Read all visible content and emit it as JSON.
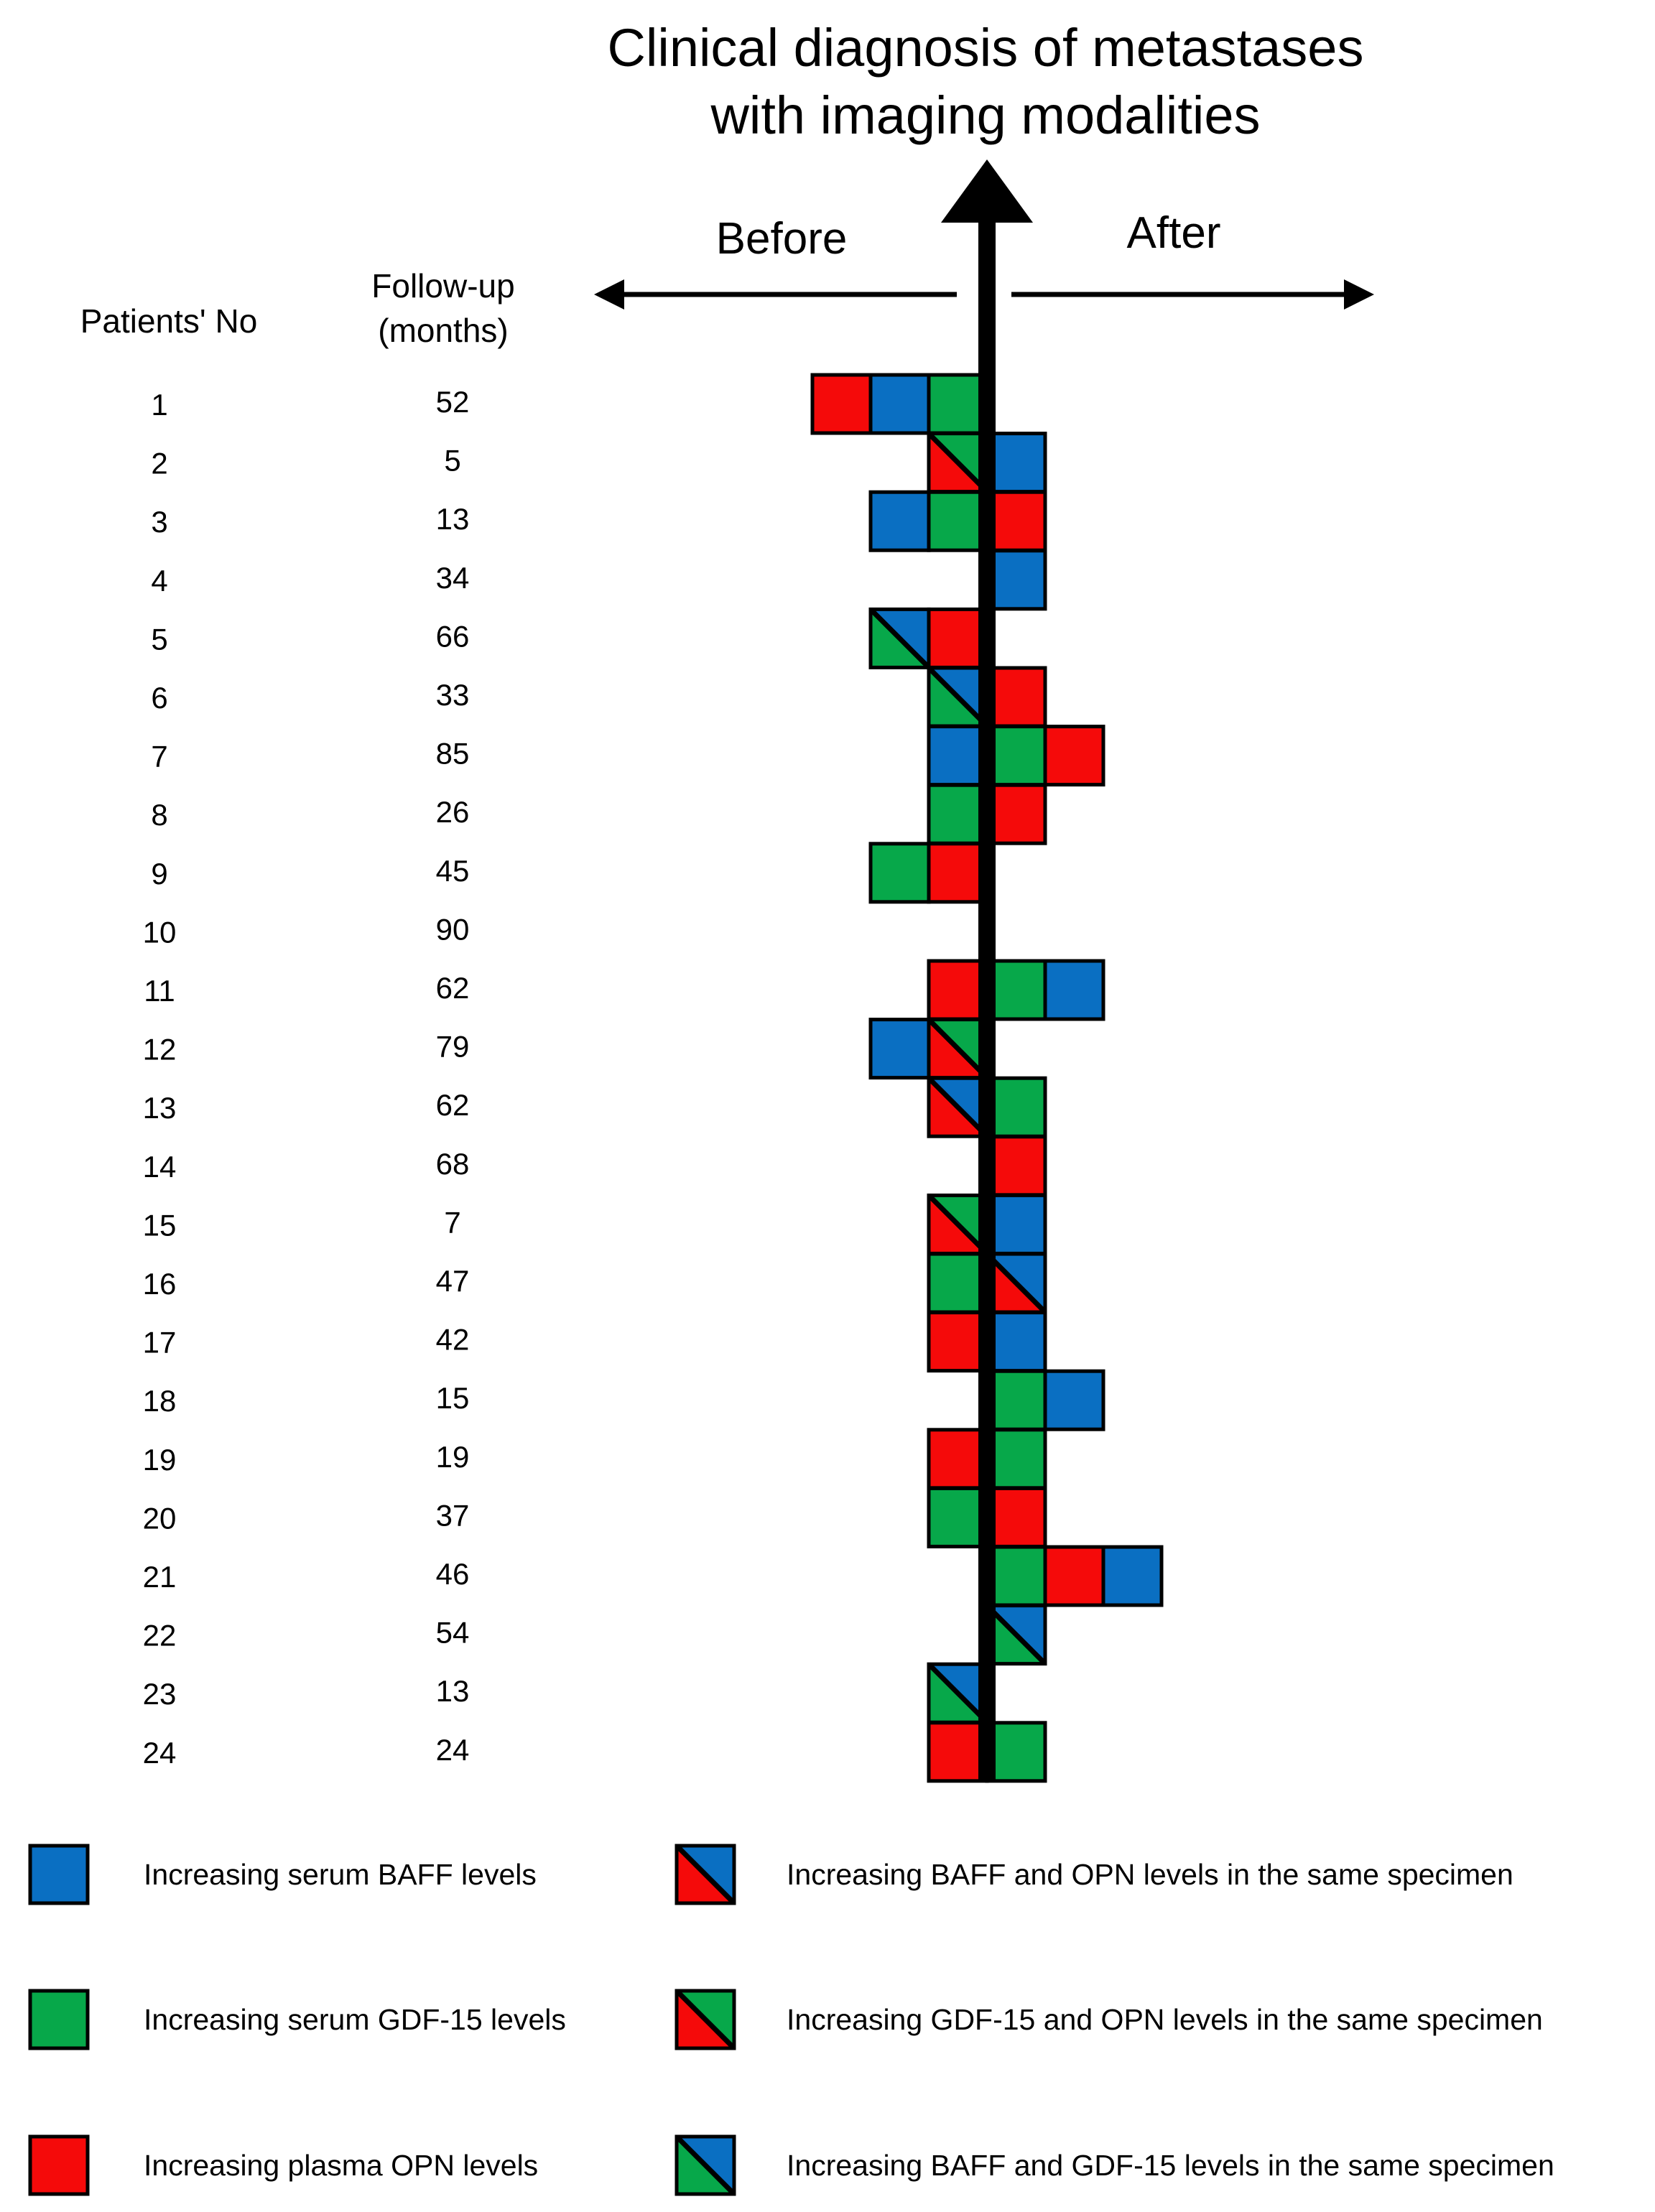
{
  "title_lines": [
    "Clinical diagnosis of metastases",
    "with imaging modalities"
  ],
  "direction_labels": {
    "before": "Before",
    "after": "After"
  },
  "column_headers": {
    "patients": "Patients' No",
    "followup_lines": [
      "Follow-up",
      "(months)"
    ]
  },
  "colors": {
    "BAFF": "#0a6fc2",
    "GDF15": "#07a84a",
    "OPN": "#f50a0a"
  },
  "patients": [
    {
      "no": "1",
      "followup": "52",
      "before": [
        "OPN",
        "BAFF",
        "GDF15"
      ],
      "after": []
    },
    {
      "no": "2",
      "followup": "5",
      "before": [
        "GDF15/OPN"
      ],
      "after": [
        "BAFF"
      ]
    },
    {
      "no": "3",
      "followup": "13",
      "before": [
        "BAFF",
        "GDF15"
      ],
      "after": [
        "OPN"
      ]
    },
    {
      "no": "4",
      "followup": "34",
      "before": [],
      "after": [
        "BAFF"
      ]
    },
    {
      "no": "5",
      "followup": "66",
      "before": [
        "BAFF/GDF15",
        "OPN"
      ],
      "after": []
    },
    {
      "no": "6",
      "followup": "33",
      "before": [
        "BAFF/GDF15"
      ],
      "after": [
        "OPN"
      ]
    },
    {
      "no": "7",
      "followup": "85",
      "before": [
        "BAFF"
      ],
      "after": [
        "GDF15",
        "OPN"
      ]
    },
    {
      "no": "8",
      "followup": "26",
      "before": [
        "GDF15"
      ],
      "after": [
        "OPN"
      ]
    },
    {
      "no": "9",
      "followup": "45",
      "before": [
        "GDF15",
        "OPN"
      ],
      "after": []
    },
    {
      "no": "10",
      "followup": "90",
      "before": [],
      "after": []
    },
    {
      "no": "11",
      "followup": "62",
      "before": [
        "OPN"
      ],
      "after": [
        "GDF15",
        "BAFF"
      ]
    },
    {
      "no": "12",
      "followup": "79",
      "before": [
        "BAFF",
        "GDF15/OPN"
      ],
      "after": []
    },
    {
      "no": "13",
      "followup": "62",
      "before": [
        "BAFF/OPN"
      ],
      "after": [
        "GDF15"
      ]
    },
    {
      "no": "14",
      "followup": "68",
      "before": [],
      "after": [
        "OPN"
      ]
    },
    {
      "no": "15",
      "followup": "7",
      "before": [
        "GDF15/OPN"
      ],
      "after": [
        "BAFF"
      ]
    },
    {
      "no": "16",
      "followup": "47",
      "before": [
        "GDF15"
      ],
      "after": [
        "BAFF/OPN"
      ]
    },
    {
      "no": "17",
      "followup": "42",
      "before": [
        "OPN"
      ],
      "after": [
        "BAFF"
      ]
    },
    {
      "no": "18",
      "followup": "15",
      "before": [],
      "after": [
        "GDF15",
        "BAFF"
      ]
    },
    {
      "no": "19",
      "followup": "19",
      "before": [
        "OPN"
      ],
      "after": [
        "GDF15"
      ]
    },
    {
      "no": "20",
      "followup": "37",
      "before": [
        "GDF15"
      ],
      "after": [
        "OPN"
      ]
    },
    {
      "no": "21",
      "followup": "46",
      "before": [],
      "after": [
        "GDF15",
        "OPN",
        "BAFF"
      ]
    },
    {
      "no": "22",
      "followup": "54",
      "before": [],
      "after": [
        "BAFF/GDF15"
      ]
    },
    {
      "no": "23",
      "followup": "13",
      "before": [
        "BAFF/GDF15"
      ],
      "after": []
    },
    {
      "no": "24",
      "followup": "24",
      "before": [
        "OPN"
      ],
      "after": [
        "GDF15"
      ]
    }
  ],
  "legend": [
    {
      "type": "BAFF",
      "label": "Increasing serum BAFF levels"
    },
    {
      "type": "GDF15",
      "label": "Increasing serum GDF-15 levels"
    },
    {
      "type": "OPN",
      "label": "Increasing plasma OPN levels"
    },
    {
      "type": "BAFF/OPN",
      "label": "Increasing BAFF and OPN levels in the same specimen"
    },
    {
      "type": "GDF15/OPN",
      "label": "Increasing GDF-15 and OPN levels in the same specimen"
    },
    {
      "type": "BAFF/GDF15",
      "label": "Increasing BAFF and GDF-15 levels in the same specimen"
    }
  ]
}
